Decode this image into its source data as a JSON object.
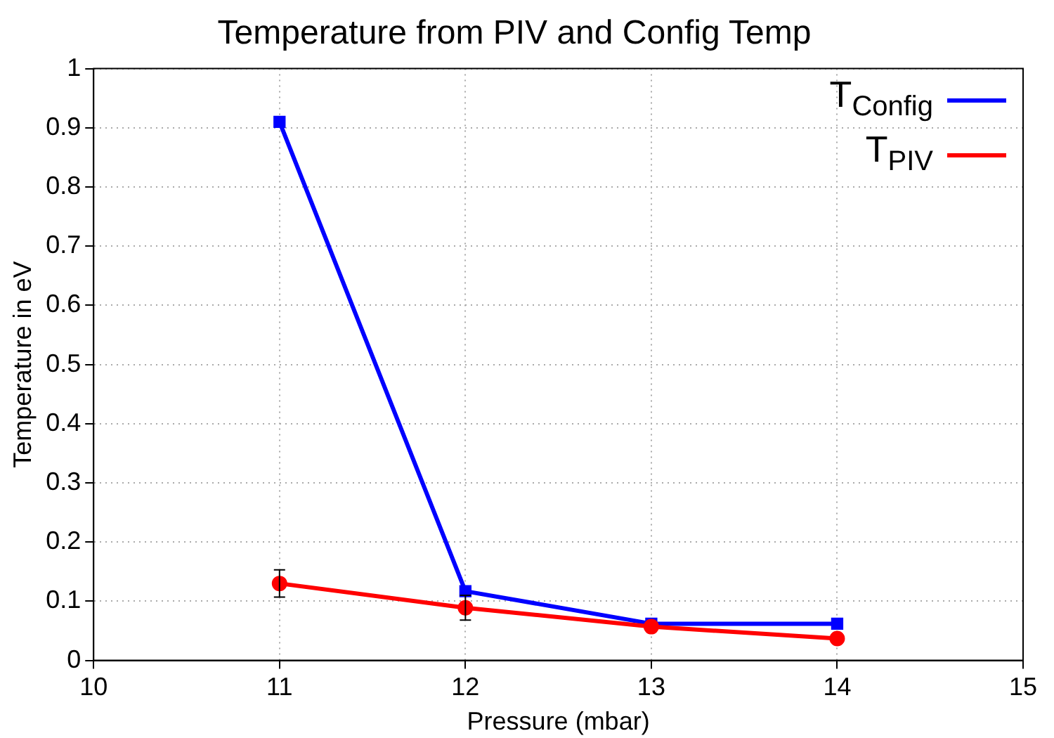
{
  "chart_data": {
    "type": "line",
    "title": "Temperature from PIV and Config Temp",
    "xlabel": "Pressure (mbar)",
    "ylabel": "Temperature in eV",
    "x": [
      11,
      12,
      13,
      14
    ],
    "series": [
      {
        "name": "T$_{Config}$",
        "color": "#0000ff",
        "marker": "square",
        "values": [
          0.91,
          0.117,
          0.062,
          0.062
        ]
      },
      {
        "name": "T$_{PIV}$",
        "color": "#ff0000",
        "marker": "circle",
        "values": [
          0.13,
          0.089,
          0.057,
          0.037
        ],
        "errors": [
          0.023,
          0.021,
          null,
          null
        ]
      }
    ],
    "xlim": [
      10,
      15
    ],
    "xticks": [
      10,
      11,
      12,
      13,
      14,
      15
    ],
    "ylim": [
      0,
      1
    ],
    "yticks": [
      0,
      0.1,
      0.2,
      0.3,
      0.4,
      0.5,
      0.6,
      0.7,
      0.8,
      0.9,
      1
    ],
    "grid": true,
    "legend": "top right",
    "line_style": "solid"
  }
}
